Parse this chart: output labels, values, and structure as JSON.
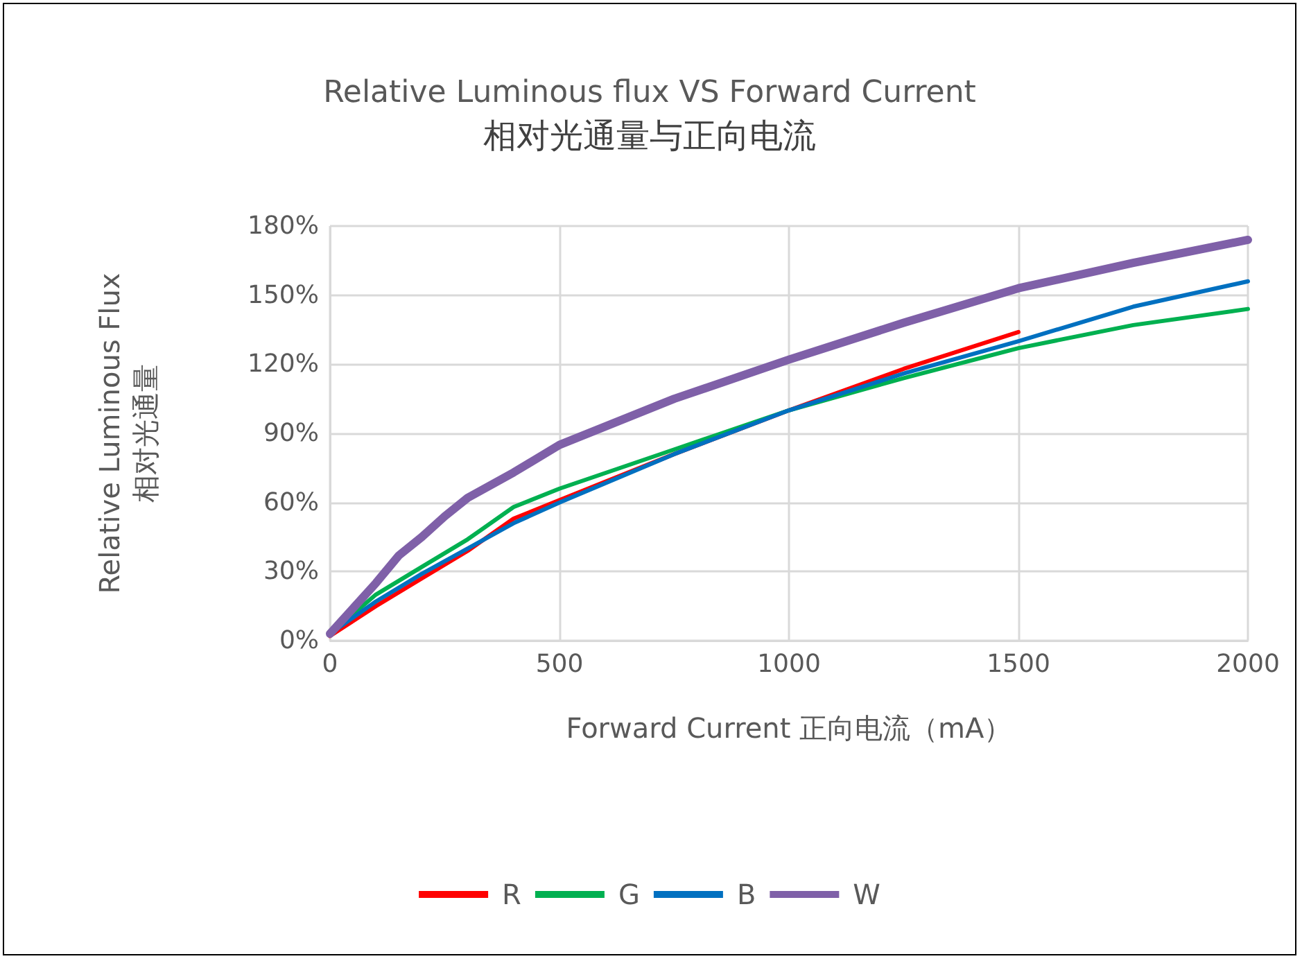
{
  "chart_data": {
    "type": "line",
    "title": "Relative Luminous flux VS Forward Current",
    "subtitle": "相对光通量与正向电流",
    "xlabel": "Forward Current 正向电流（mA）",
    "ylabel": "Relative Luminous Flux\n相对光通量",
    "xlim": [
      0,
      2000
    ],
    "xticks": [
      0,
      500,
      1000,
      1500,
      2000
    ],
    "ylim": [
      0,
      180
    ],
    "yticks": [
      {
        "value": 0,
        "label": "0%"
      },
      {
        "value": 30,
        "label": "30%"
      },
      {
        "value": 60,
        "label": "60%"
      },
      {
        "value": 90,
        "label": "90%"
      },
      {
        "value": 120,
        "label": "120%"
      },
      {
        "value": 150,
        "label": "150%"
      },
      {
        "value": 180,
        "label": "180%"
      }
    ],
    "grid": true,
    "legend": "bottom",
    "marker": "none",
    "line_style": "solid",
    "series": [
      {
        "name": "R",
        "color": "#ff0000",
        "x": [
          0,
          100,
          200,
          300,
          400,
          500,
          750,
          1000,
          1250,
          1500
        ],
        "values": [
          2,
          15,
          27,
          39,
          53,
          61,
          81,
          100,
          118,
          134
        ]
      },
      {
        "name": "G",
        "color": "#00b050",
        "x": [
          0,
          100,
          200,
          300,
          400,
          500,
          750,
          1000,
          1250,
          1500,
          1750,
          2000
        ],
        "values": [
          3,
          20,
          32,
          44,
          58,
          66,
          83,
          100,
          114,
          127,
          137,
          144
        ]
      },
      {
        "name": "B",
        "color": "#0070c0",
        "x": [
          0,
          100,
          200,
          300,
          400,
          500,
          750,
          1000,
          1250,
          1500,
          1750,
          2000
        ],
        "values": [
          3,
          17,
          29,
          40,
          51,
          60,
          81,
          100,
          116,
          130,
          145,
          156
        ]
      },
      {
        "name": "W",
        "color": "#7f60a8",
        "x": [
          0,
          50,
          100,
          150,
          200,
          250,
          300,
          400,
          500,
          750,
          1000,
          1250,
          1500,
          1750,
          2000
        ],
        "values": [
          3,
          14,
          25,
          37,
          45,
          54,
          62,
          73,
          85,
          105,
          122,
          138,
          153,
          164,
          174
        ]
      }
    ]
  }
}
